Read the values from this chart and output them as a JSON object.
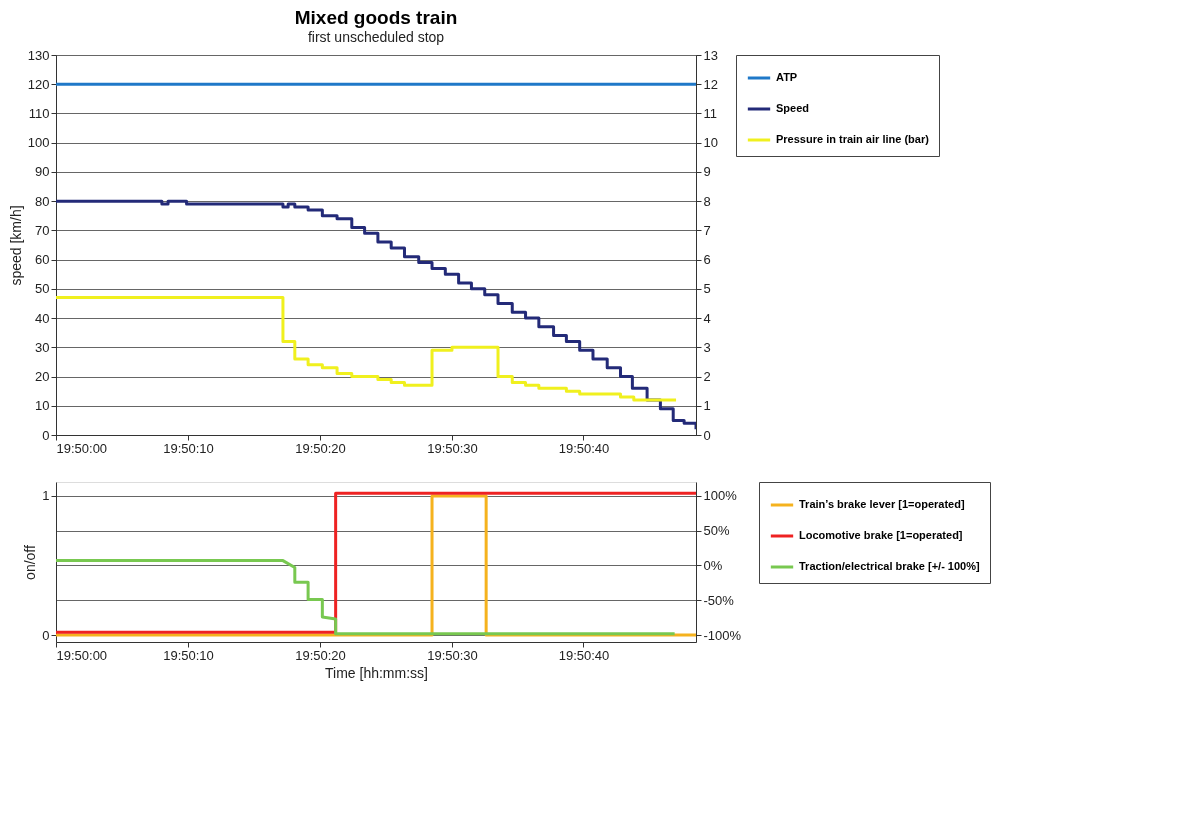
{
  "chart_data": [
    {
      "type": "line",
      "title": "Mixed goods train",
      "subtitle": "first unscheduled stop",
      "ylabel": "speed [km/h]",
      "xlim": [
        19.83333,
        19.84681
      ],
      "xticks": [
        {
          "value": 19.83333,
          "label": "19:50:00"
        },
        {
          "value": 19.83611,
          "label": "19:50:10"
        },
        {
          "value": 19.83889,
          "label": "19:50:20"
        },
        {
          "value": 19.84167,
          "label": "19:50:30"
        },
        {
          "value": 19.84444,
          "label": "19:50:40"
        }
      ],
      "ylim": [
        0,
        130
      ],
      "yticks": [
        0,
        10,
        20,
        30,
        40,
        50,
        60,
        70,
        80,
        90,
        100,
        110,
        120,
        130
      ],
      "y2lim": [
        0,
        13
      ],
      "y2ticks": [
        0,
        1,
        2,
        3,
        4,
        5,
        6,
        7,
        8,
        9,
        10,
        11,
        12,
        13
      ],
      "grid": "y",
      "legend": "right",
      "series": [
        {
          "name": "ATP",
          "color": "#1f78c8",
          "x": [
            19.83333,
            19.84681
          ],
          "values": [
            120,
            120
          ]
        },
        {
          "name": "Speed",
          "color": "#232a78",
          "type": "step",
          "x": [
            19.83333,
            19.83556,
            19.83569,
            19.83608,
            19.83811,
            19.83822,
            19.83836,
            19.83864,
            19.83894,
            19.83925,
            19.83956,
            19.83983,
            19.84011,
            19.84039,
            19.84067,
            19.84097,
            19.84125,
            19.84153,
            19.84181,
            19.84208,
            19.84236,
            19.84264,
            19.84294,
            19.84322,
            19.8435,
            19.84381,
            19.84408,
            19.84436,
            19.84464,
            19.84494,
            19.84522,
            19.84547,
            19.84578,
            19.84606,
            19.84633,
            19.84656,
            19.84681
          ],
          "values": [
            80,
            79,
            80,
            79,
            78,
            79,
            78,
            77,
            75,
            74,
            71,
            69,
            66,
            64,
            61,
            59,
            57,
            55,
            52,
            50,
            48,
            45,
            42,
            40,
            37,
            34,
            32,
            29,
            26,
            23,
            20,
            16,
            12,
            9,
            5,
            4,
            2
          ]
        },
        {
          "name": "Pressure in train air line (bar)",
          "color": "#f0f01e",
          "type": "step",
          "axis": "y2",
          "x": [
            19.83333,
            19.83811,
            19.83836,
            19.83864,
            19.83894,
            19.83925,
            19.83956,
            19.84011,
            19.84039,
            19.84067,
            19.84125,
            19.84167,
            19.84264,
            19.84294,
            19.84322,
            19.8435,
            19.84408,
            19.84436,
            19.84522,
            19.8455,
            19.84639
          ],
          "values": [
            4.7,
            3.2,
            2.6,
            2.4,
            2.3,
            2.1,
            2.0,
            1.9,
            1.8,
            1.7,
            2.9,
            3.0,
            2.0,
            1.8,
            1.7,
            1.6,
            1.5,
            1.4,
            1.3,
            1.2,
            1.2
          ]
        }
      ]
    },
    {
      "type": "line",
      "ylabel": "on/off",
      "xlabel": "Time [hh:mm:ss]",
      "xlim": [
        19.83333,
        19.84681
      ],
      "xticks": [
        {
          "value": 19.83333,
          "label": "19:50:00"
        },
        {
          "value": 19.83611,
          "label": "19:50:10"
        },
        {
          "value": 19.83889,
          "label": "19:50:20"
        },
        {
          "value": 19.84167,
          "label": "19:50:30"
        },
        {
          "value": 19.84444,
          "label": "19:50:40"
        }
      ],
      "ylim": [
        -0.05,
        1.1
      ],
      "yticks": [
        0,
        1
      ],
      "y2lim": [
        -110,
        120
      ],
      "y2ticks": [
        {
          "value": -100,
          "label": "-100%"
        },
        {
          "value": -50,
          "label": "-50%"
        },
        {
          "value": 0,
          "label": "0%"
        },
        {
          "value": 50,
          "label": "50%"
        },
        {
          "value": 100,
          "label": "100%"
        }
      ],
      "grid": "y",
      "legend": "right",
      "series": [
        {
          "name": "Train’s brake lever [1=operated]",
          "color": "#f5b21e",
          "type": "step",
          "x": [
            19.83333,
            19.84125,
            19.84239,
            19.84681
          ],
          "values": [
            0,
            1,
            0,
            0
          ]
        },
        {
          "name": "Locomotive brake [1=operated]",
          "color": "#ee2222",
          "type": "step",
          "x": [
            19.83333,
            19.83922,
            19.84681
          ],
          "values": [
            0.02,
            1.02,
            1.02
          ]
        },
        {
          "name": "Traction/electrical brake [+/- 100%]",
          "color": "#78c850",
          "axis": "y2",
          "x": [
            19.83333,
            19.83811,
            19.83836,
            19.83836,
            19.83864,
            19.83864,
            19.83894,
            19.83894,
            19.83922,
            19.83922,
            19.84636
          ],
          "values": [
            7,
            7,
            -3,
            -24,
            -24,
            -49,
            -49,
            -74,
            -77,
            -98,
            -98
          ]
        }
      ]
    }
  ]
}
